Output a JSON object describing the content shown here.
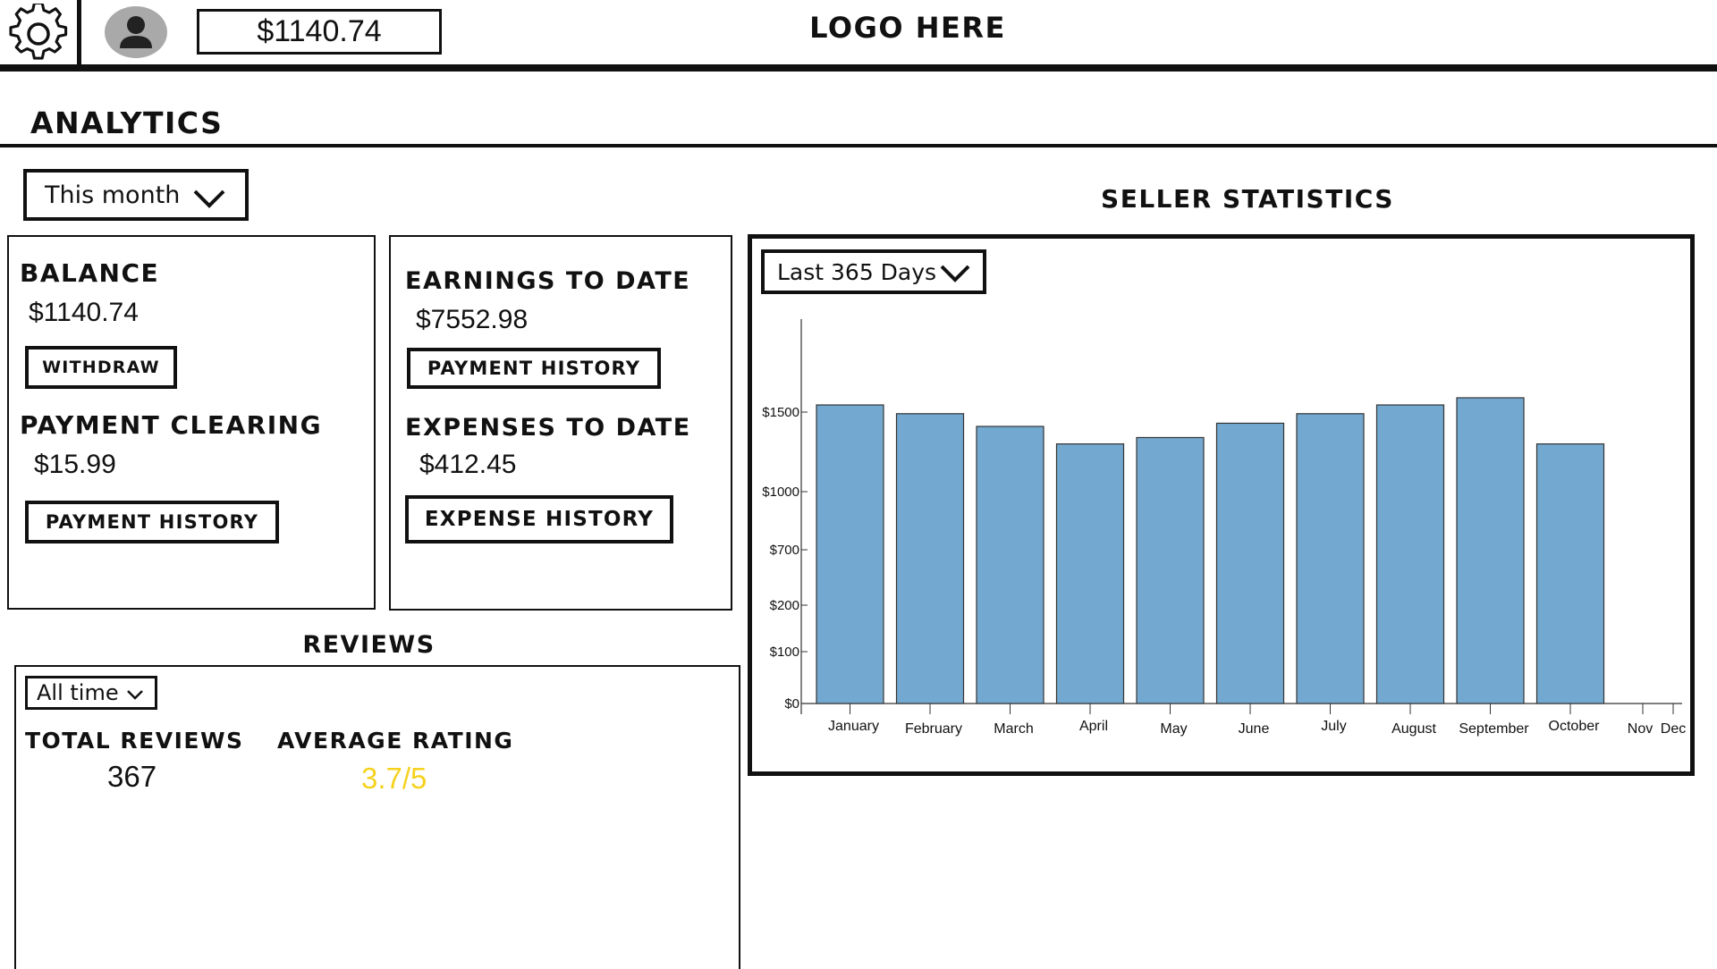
{
  "header": {
    "balance": "$1140.74",
    "logo": "LOGO HERE"
  },
  "page": {
    "title": "ANALYTICS"
  },
  "period_dropdown": {
    "selected": "This month"
  },
  "balance_card": {
    "balance_label": "BALANCE",
    "balance_value": "$1140.74",
    "withdraw_label": "WITHDRAW",
    "clearing_label": "PAYMENT CLEARING",
    "clearing_value": "$15.99",
    "payment_history_label": "PAYMENT HISTORY"
  },
  "earnings_card": {
    "earnings_label": "EARNINGS TO DATE",
    "earnings_value": "$7552.98",
    "payment_history_label": "PAYMENT HISTORY",
    "expenses_label": "EXPENSES TO DATE",
    "expenses_value": "$412.45",
    "expense_history_label": "EXPENSE HISTORY"
  },
  "reviews": {
    "title": "REVIEWS",
    "dropdown_selected": "All time",
    "total_label": "TOTAL REVIEWS",
    "total_value": "367",
    "average_label": "AVERAGE RATING",
    "average_value": "3.7/5",
    "average_color": "#f5d21e"
  },
  "seller_stats": {
    "title": "SELLER STATISTICS",
    "range_selected": "Last 365 Days"
  },
  "chart_data": {
    "type": "bar",
    "categories": [
      "January",
      "February",
      "March",
      "April",
      "May",
      "June",
      "July",
      "August",
      "September",
      "October",
      "Nov",
      "Dec"
    ],
    "values": [
      1550,
      1490,
      1410,
      1300,
      1340,
      1430,
      1490,
      1550,
      1610,
      1300,
      0,
      0
    ],
    "y_ticks": [
      {
        "value": 0,
        "label": "$0"
      },
      {
        "value": 100,
        "label": "$100"
      },
      {
        "value": 200,
        "label": "$200"
      },
      {
        "value": 700,
        "label": "$700"
      },
      {
        "value": 1000,
        "label": "$1000"
      },
      {
        "value": 1500,
        "label": "$1500"
      }
    ],
    "ylim": [
      0,
      1600
    ],
    "bar_color": "#73a9d0",
    "title": "",
    "xlabel": "",
    "ylabel": "",
    "grid": false
  }
}
